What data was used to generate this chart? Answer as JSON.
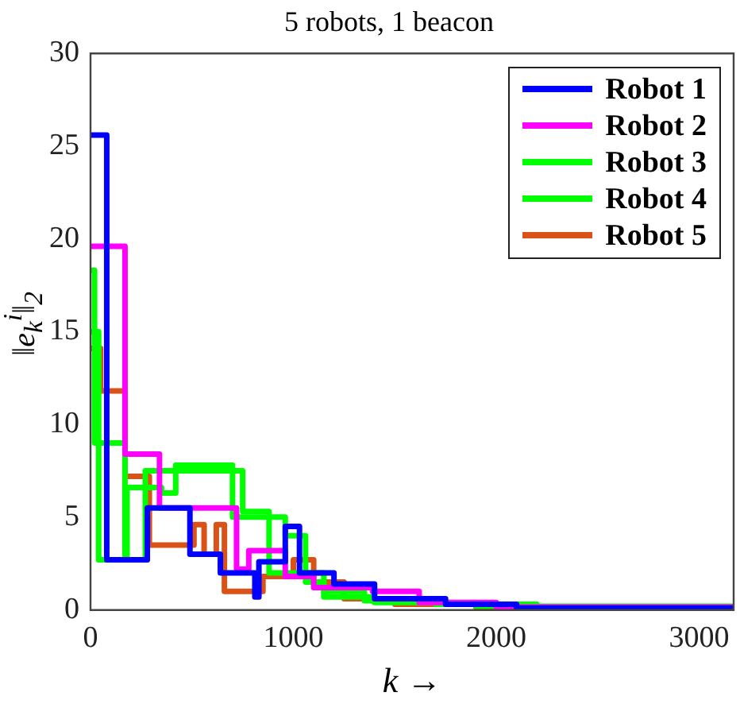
{
  "chart_data": {
    "type": "step",
    "title": "5 robots, 1 beacon",
    "xlabel": "k →",
    "ylabel": "‖e$_{k}$$^{i}$‖$_{2}$",
    "xlim": [
      0,
      3170
    ],
    "xticks": [
      0,
      1000,
      2000,
      3000
    ],
    "ylim": [
      0,
      30
    ],
    "yticks": [
      0,
      5,
      10,
      15,
      20,
      25,
      30
    ],
    "grid": false,
    "legend": "top right",
    "marker": "none",
    "line_style": "solid",
    "series": [
      {
        "name": "Robot 1",
        "color": "#0000ff",
        "x": [
          0,
          80,
          280,
          490,
          640,
          810,
          830,
          960,
          1030,
          1200,
          1400,
          1750,
          2100,
          3170
        ],
        "values": [
          25.6,
          2.7,
          5.5,
          3.0,
          2.0,
          0.7,
          2.6,
          4.5,
          2.0,
          1.4,
          0.6,
          0.3,
          0.1,
          0.1
        ]
      },
      {
        "name": "Robot 2",
        "color": "#ff00ff",
        "x": [
          0,
          170,
          340,
          720,
          780,
          960,
          1100,
          1390,
          1620,
          2000,
          3170
        ],
        "values": [
          19.6,
          8.4,
          5.5,
          2.2,
          3.2,
          1.8,
          1.2,
          1.0,
          0.4,
          0.15,
          0.1
        ]
      },
      {
        "name": "Robot 3",
        "color": "#00ff00",
        "x": [
          0,
          20,
          170,
          270,
          750,
          880,
          1150,
          1350,
          1700,
          2200,
          3170
        ],
        "values": [
          18.3,
          9.0,
          2.7,
          7.5,
          5.3,
          2.0,
          1.0,
          0.5,
          0.3,
          0.1,
          0.1
        ]
      },
      {
        "name": "Robot 4",
        "color": "#00ff00",
        "x": [
          0,
          40,
          180,
          350,
          420,
          700,
          960,
          1060,
          1150,
          1400,
          1900,
          3170
        ],
        "values": [
          15.0,
          2.7,
          6.6,
          6.3,
          7.8,
          5.0,
          4.0,
          1.5,
          0.7,
          0.4,
          0.2,
          0.05
        ]
      },
      {
        "name": "Robot 5",
        "color": "#d95319",
        "x": [
          0,
          50,
          170,
          290,
          510,
          560,
          620,
          660,
          850,
          1000,
          1100,
          1250,
          1500,
          1900,
          3170
        ],
        "values": [
          14.1,
          11.8,
          7.2,
          3.5,
          4.6,
          3.0,
          4.6,
          1.0,
          1.8,
          2.7,
          1.5,
          0.6,
          0.3,
          0.15,
          0.15
        ]
      }
    ]
  }
}
